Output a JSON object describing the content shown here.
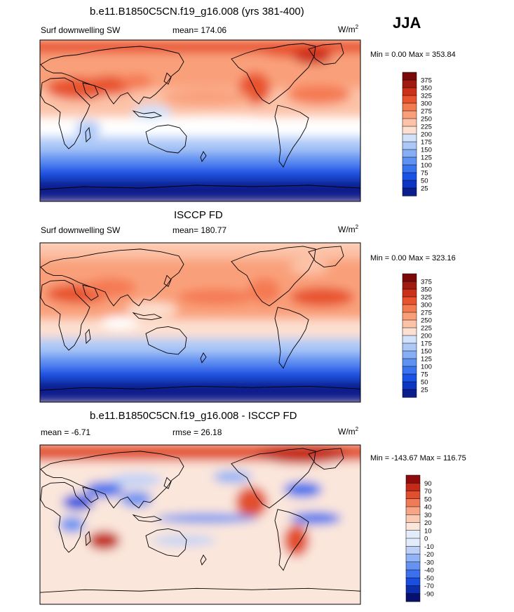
{
  "season": "JJA",
  "colors": {
    "scale_abs": [
      "#0a1f8c",
      "#0c35c4",
      "#1a52e6",
      "#3a72f0",
      "#5f91f2",
      "#86aef4",
      "#abc8f7",
      "#d2e2fa",
      "#ffffff",
      "#fde0d0",
      "#fcc3a8",
      "#f9a07a",
      "#f47a52",
      "#e8532e",
      "#cc2f1a",
      "#a11a12",
      "#7a0a0a"
    ],
    "scale_diff": [
      "#08106e",
      "#0c2db0",
      "#1a4ee0",
      "#3c70ee",
      "#6692f2",
      "#92b3f5",
      "#bdd1f8",
      "#e3ecfb",
      "#fbe6db",
      "#fbcab2",
      "#f7a585",
      "#f07b56",
      "#e24f2f",
      "#c52a18",
      "#8f0c0c"
    ],
    "land_outline": "#000000"
  },
  "panels": [
    {
      "title": "b.e11.B1850C5CN.f19_g16.008 (yrs 381-400)",
      "left_label": "Surf downwelling SW",
      "stat_label": "mean= 174.06",
      "units": "W/m",
      "units_exp": "2",
      "minmax": "Min =   0.00 Max = 353.84",
      "chart_data": {
        "type": "heatmap",
        "variable": "Surf downwelling SW",
        "mean": 174.06,
        "min": 0.0,
        "max": 353.84,
        "colorbar_levels": [
          "375",
          "350",
          "325",
          "300",
          "275",
          "250",
          "225",
          "200",
          "175",
          "150",
          "125",
          "100",
          "75",
          "50",
          "25"
        ]
      }
    },
    {
      "title": "ISCCP FD",
      "left_label": "Surf downwelling SW",
      "stat_label": "mean= 180.77",
      "units": "W/m",
      "units_exp": "2",
      "minmax": "Min =   0.00 Max = 323.16",
      "chart_data": {
        "type": "heatmap",
        "variable": "Surf downwelling SW",
        "mean": 180.77,
        "min": 0.0,
        "max": 323.16,
        "colorbar_levels": [
          "375",
          "350",
          "325",
          "300",
          "275",
          "250",
          "225",
          "200",
          "175",
          "150",
          "125",
          "100",
          "75",
          "50",
          "25"
        ]
      }
    },
    {
      "title": "b.e11.B1850C5CN.f19_g16.008 - ISCCP FD",
      "left_label": "mean =  -6.71",
      "stat_label": "rmse =  26.18",
      "units": "W/m",
      "units_exp": "2",
      "minmax": "Min = -143.67 Max = 116.75",
      "chart_data": {
        "type": "heatmap",
        "variable": "difference",
        "mean": -6.71,
        "rmse": 26.18,
        "min": -143.67,
        "max": 116.75,
        "colorbar_levels": [
          "90",
          "70",
          "50",
          "40",
          "30",
          "20",
          "10",
          "0",
          "-10",
          "-20",
          "-30",
          "-40",
          "-50",
          "-70",
          "-90"
        ]
      }
    }
  ]
}
